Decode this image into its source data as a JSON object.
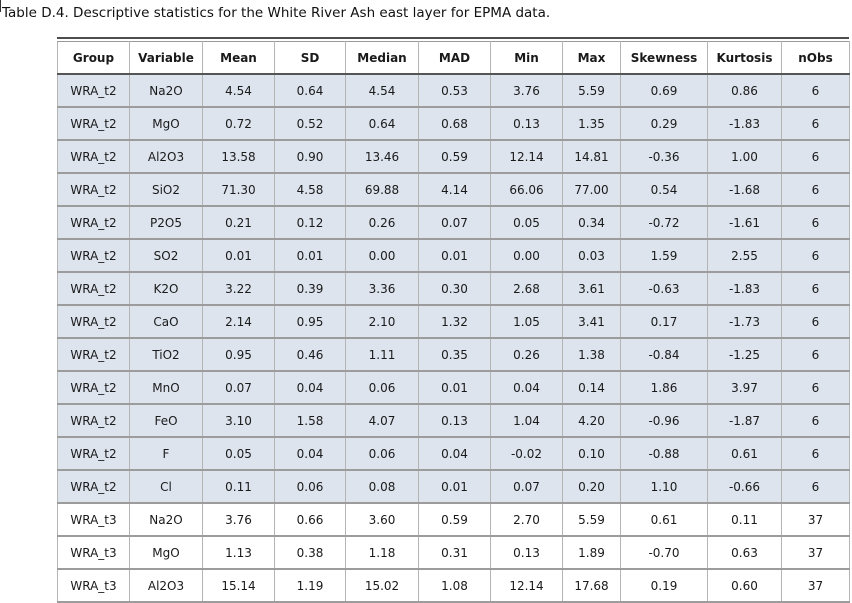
{
  "title": "Table D.4. Descriptive statistics for the White River Ash east layer for EPMA data.",
  "table": {
    "columns": [
      "Group",
      "Variable",
      "Mean",
      "SD",
      "Median",
      "MAD",
      "Min",
      "Max",
      "Skewness",
      "Kurtosis",
      "nObs"
    ],
    "rows": [
      [
        "WRA_t2",
        "Na2O",
        "4.54",
        "0.64",
        "4.54",
        "0.53",
        "3.76",
        "5.59",
        "0.69",
        "0.86",
        "6"
      ],
      [
        "WRA_t2",
        "MgO",
        "0.72",
        "0.52",
        "0.64",
        "0.68",
        "0.13",
        "1.35",
        "0.29",
        "-1.83",
        "6"
      ],
      [
        "WRA_t2",
        "Al2O3",
        "13.58",
        "0.90",
        "13.46",
        "0.59",
        "12.14",
        "14.81",
        "-0.36",
        "1.00",
        "6"
      ],
      [
        "WRA_t2",
        "SiO2",
        "71.30",
        "4.58",
        "69.88",
        "4.14",
        "66.06",
        "77.00",
        "0.54",
        "-1.68",
        "6"
      ],
      [
        "WRA_t2",
        "P2O5",
        "0.21",
        "0.12",
        "0.26",
        "0.07",
        "0.05",
        "0.34",
        "-0.72",
        "-1.61",
        "6"
      ],
      [
        "WRA_t2",
        "SO2",
        "0.01",
        "0.01",
        "0.00",
        "0.01",
        "0.00",
        "0.03",
        "1.59",
        "2.55",
        "6"
      ],
      [
        "WRA_t2",
        "K2O",
        "3.22",
        "0.39",
        "3.36",
        "0.30",
        "2.68",
        "3.61",
        "-0.63",
        "-1.83",
        "6"
      ],
      [
        "WRA_t2",
        "CaO",
        "2.14",
        "0.95",
        "2.10",
        "1.32",
        "1.05",
        "3.41",
        "0.17",
        "-1.73",
        "6"
      ],
      [
        "WRA_t2",
        "TiO2",
        "0.95",
        "0.46",
        "1.11",
        "0.35",
        "0.26",
        "1.38",
        "-0.84",
        "-1.25",
        "6"
      ],
      [
        "WRA_t2",
        "MnO",
        "0.07",
        "0.04",
        "0.06",
        "0.01",
        "0.04",
        "0.14",
        "1.86",
        "3.97",
        "6"
      ],
      [
        "WRA_t2",
        "FeO",
        "3.10",
        "1.58",
        "4.07",
        "0.13",
        "1.04",
        "4.20",
        "-0.96",
        "-1.87",
        "6"
      ],
      [
        "WRA_t2",
        "F",
        "0.05",
        "0.04",
        "0.06",
        "0.04",
        "-0.02",
        "0.10",
        "-0.88",
        "0.61",
        "6"
      ],
      [
        "WRA_t2",
        "Cl",
        "0.11",
        "0.06",
        "0.08",
        "0.01",
        "0.07",
        "0.20",
        "1.10",
        "-0.66",
        "6"
      ],
      [
        "WRA_t3",
        "Na2O",
        "3.76",
        "0.66",
        "3.60",
        "0.59",
        "2.70",
        "5.59",
        "0.61",
        "0.11",
        "37"
      ],
      [
        "WRA_t3",
        "MgO",
        "1.13",
        "0.38",
        "1.18",
        "0.31",
        "0.13",
        "1.89",
        "-0.70",
        "0.63",
        "37"
      ],
      [
        "WRA_t3",
        "Al2O3",
        "15.14",
        "1.19",
        "15.02",
        "1.08",
        "12.14",
        "17.68",
        "0.19",
        "0.60",
        "37"
      ]
    ],
    "group_colors": {
      "WRA_t2": "#dde4ee",
      "WRA_t3": "#ffffff"
    }
  }
}
